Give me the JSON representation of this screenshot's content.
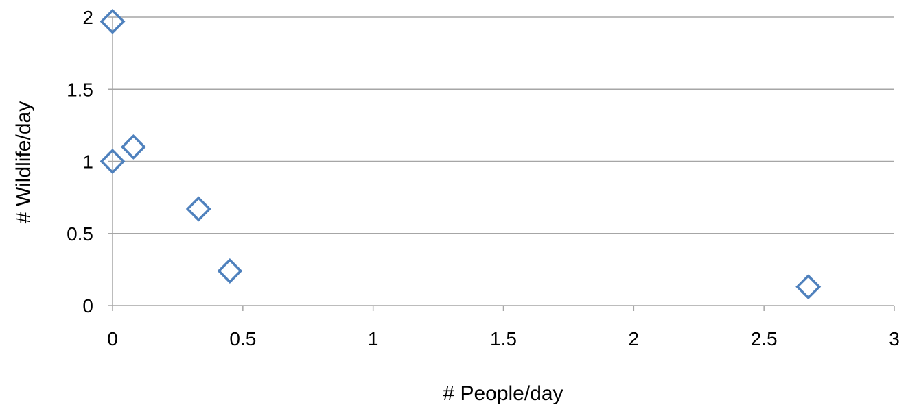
{
  "chart_data": {
    "type": "scatter",
    "title": "",
    "xlabel": "# People/day",
    "ylabel": "# Wildlife/day",
    "xlim": [
      0,
      3
    ],
    "ylim": [
      0,
      2
    ],
    "x_ticks": [
      "0",
      "0.5",
      "1",
      "1.5",
      "2",
      "2.5",
      "3"
    ],
    "y_ticks": [
      "0",
      "0.5",
      "1",
      "1.5",
      "2"
    ],
    "grid": "horizontal",
    "marker": "diamond-open",
    "series": [
      {
        "color": "#4F81BD",
        "points": [
          {
            "x": 0,
            "y": 1.97
          },
          {
            "x": 0,
            "y": 1.0
          },
          {
            "x": 0.08,
            "y": 1.1
          },
          {
            "x": 0.33,
            "y": 0.67
          },
          {
            "x": 0.45,
            "y": 0.24
          },
          {
            "x": 2.67,
            "y": 0.13
          }
        ]
      }
    ],
    "colors": {
      "gridline": "#A6A6A6",
      "axis": "#A6A6A6"
    }
  }
}
